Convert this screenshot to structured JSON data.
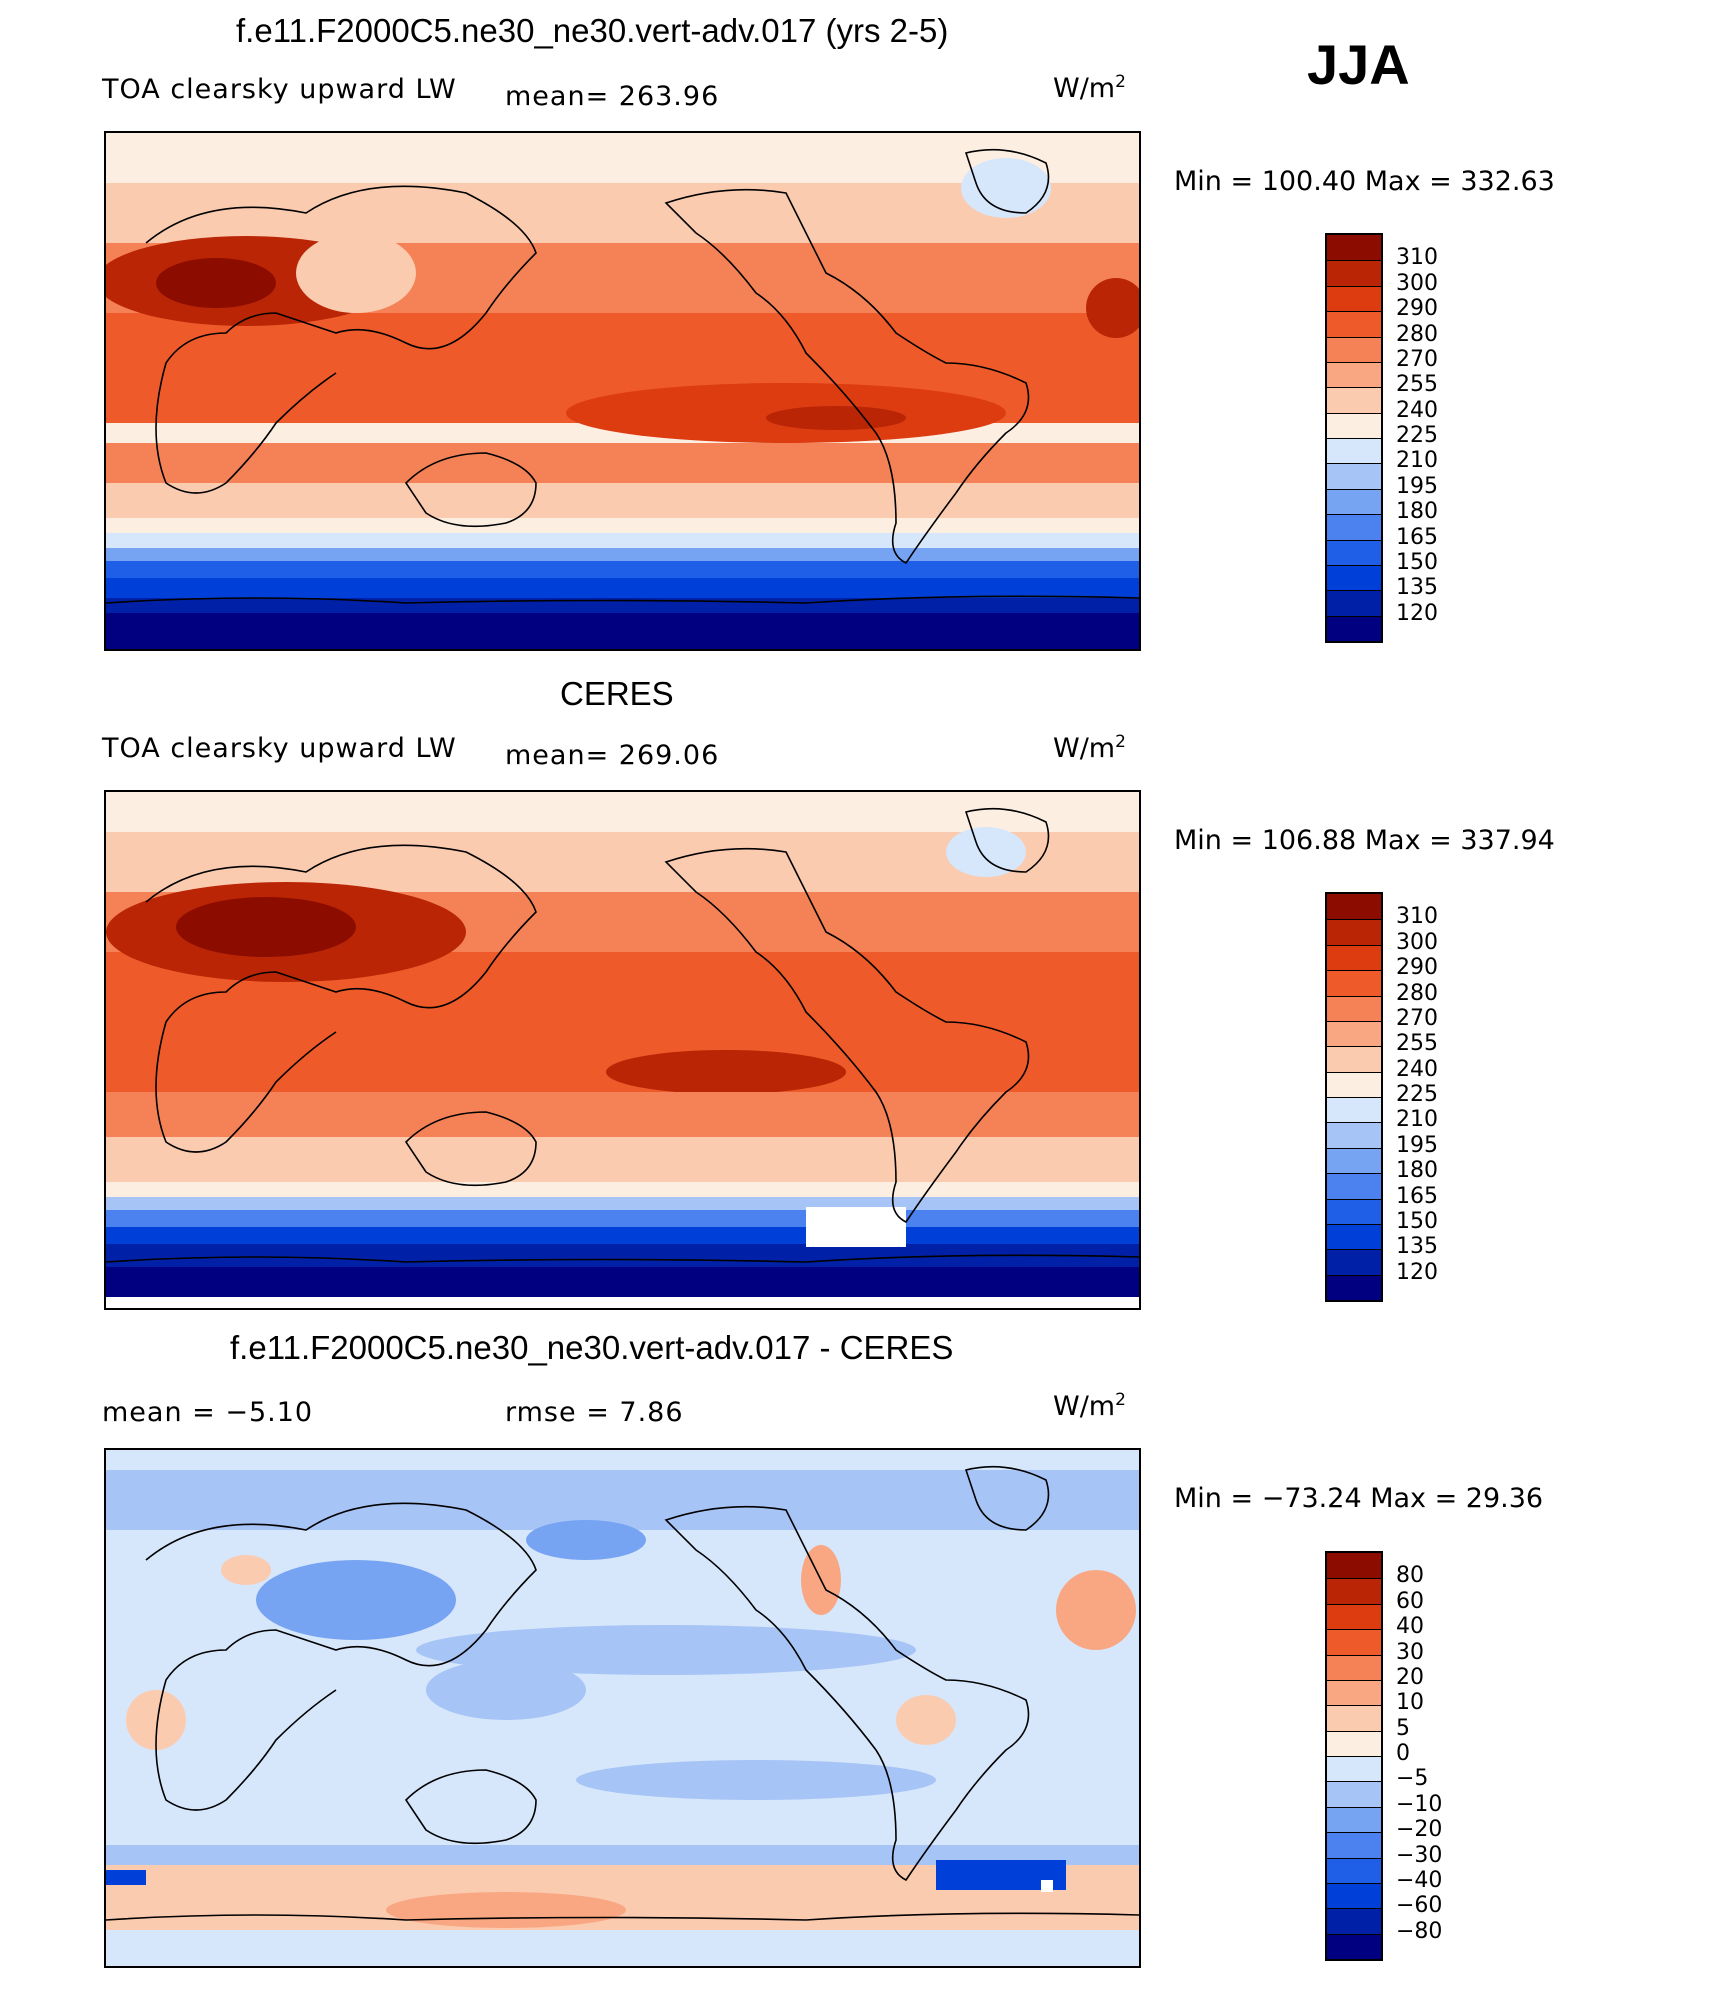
{
  "season": "JJA",
  "colors": {
    "abs": [
      "#000080",
      "#0020a8",
      "#0040d8",
      "#1f5fe8",
      "#4b82ef",
      "#77a3f3",
      "#a6c4f6",
      "#d6e6fb",
      "#fdeee2",
      "#fbcbb0",
      "#f9a783",
      "#f48256",
      "#ee5a29",
      "#dc3c10",
      "#b92505",
      "#8c0d00"
    ],
    "diff": [
      "#000080",
      "#0020a8",
      "#0040d8",
      "#1f5fe8",
      "#4b82ef",
      "#77a3f3",
      "#a6c4f6",
      "#d6e6fb",
      "#fdeee2",
      "#fbcbb0",
      "#f9a783",
      "#f48256",
      "#ee5a29",
      "#dc3c10",
      "#b92505",
      "#8c0d00"
    ]
  },
  "panels": [
    {
      "title": "f.e11.F2000C5.ne30_ne30.vert-adv.017 (yrs 2-5)",
      "left_label": "TOA clearsky upward LW",
      "stat_label": "mean= 263.96",
      "unit": "W/m",
      "unit_sup": "2",
      "minmax": "Min  =  100.40  Max  =  332.63",
      "ticks": [
        "310",
        "300",
        "290",
        "280",
        "270",
        "255",
        "240",
        "225",
        "210",
        "195",
        "180",
        "165",
        "150",
        "135",
        "120"
      ]
    },
    {
      "title": "CERES",
      "left_label": "TOA clearsky upward LW",
      "stat_label": "mean= 269.06",
      "unit": "W/m",
      "unit_sup": "2",
      "minmax": "Min  =  106.88  Max  =  337.94",
      "ticks": [
        "310",
        "300",
        "290",
        "280",
        "270",
        "255",
        "240",
        "225",
        "210",
        "195",
        "180",
        "165",
        "150",
        "135",
        "120"
      ]
    },
    {
      "title": "f.e11.F2000C5.ne30_ne30.vert-adv.017 - CERES",
      "left_label": "mean =    −5.10",
      "stat_label": "rmse =     7.86",
      "unit": "W/m",
      "unit_sup": "2",
      "minmax": "Min  =  −73.24  Max  =    29.36",
      "ticks": [
        "80",
        "60",
        "40",
        "30",
        "20",
        "10",
        "5",
        "0",
        "−5",
        "−10",
        "−20",
        "−30",
        "−40",
        "−60",
        "−80"
      ]
    }
  ]
}
